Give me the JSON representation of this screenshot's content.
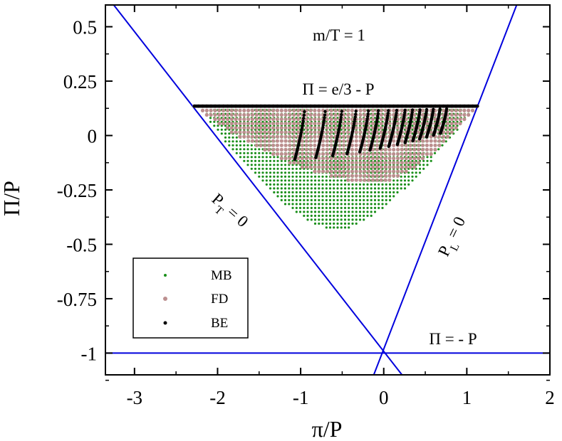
{
  "chart_data": {
    "type": "scatter",
    "title": "",
    "xlabel": "π/P",
    "ylabel": "Π/P",
    "xlim": [
      -3.35,
      2.0
    ],
    "ylim": [
      -1.1,
      0.6
    ],
    "x_ticks": [
      "-3",
      "-2",
      "-1",
      "0",
      "1",
      "2"
    ],
    "y_ticks": [
      "0.5",
      "0.25",
      "0",
      "-0.25",
      "-0.5",
      "-0.75",
      "-1"
    ],
    "grid": false,
    "legend_position": "bottom-left",
    "legend": [
      {
        "name": "MB",
        "color": "#1a8f1a"
      },
      {
        "name": "FD",
        "color": "#bc8f8f"
      },
      {
        "name": "BE",
        "color": "#000000"
      }
    ],
    "annotations": {
      "mass": "m/T = 1",
      "top_boundary": "Π = e/3 - P",
      "pt_label": {
        "main": "P",
        "sub": "T",
        "rest": " = 0"
      },
      "pl_label": {
        "main": "P",
        "sub": "L",
        "rest": " = 0"
      },
      "bottom_line": "Π = - P"
    },
    "lines": [
      {
        "name": "P_T = 0",
        "color": "#0000dd",
        "from": [
          -3.25,
          0.6
        ],
        "to": [
          0.22,
          -1.1
        ]
      },
      {
        "name": "P_L = 0",
        "color": "#0000dd",
        "from": [
          -0.12,
          -1.1
        ],
        "to": [
          1.6,
          0.6
        ]
      },
      {
        "name": "Π = - P",
        "color": "#0000dd",
        "from": [
          -3.35,
          -1.0
        ],
        "to": [
          2.0,
          -1.0
        ]
      }
    ],
    "series": [
      {
        "name": "MB",
        "color": "#1a8f1a",
        "region": {
          "x_range": [
            -2.22,
            1.1
          ],
          "y_top": 0.135,
          "y_bottom_min": -0.44,
          "bottom_at_x": -0.55
        }
      },
      {
        "name": "FD",
        "color": "#bc8f8f",
        "region": {
          "x_range": [
            -2.28,
            1.14
          ],
          "y_top": 0.135,
          "y_bottom_min": -0.22,
          "bottom_at_x": 0.0
        }
      },
      {
        "name": "BE",
        "color": "#000000",
        "curves_start_x": [
          -0.95,
          -0.7,
          -0.5,
          -0.33,
          -0.18,
          -0.06,
          0.06,
          0.16,
          0.26,
          0.35,
          0.44,
          0.52,
          0.6,
          0.68,
          0.76
        ],
        "y_top": 0.135
      }
    ]
  }
}
